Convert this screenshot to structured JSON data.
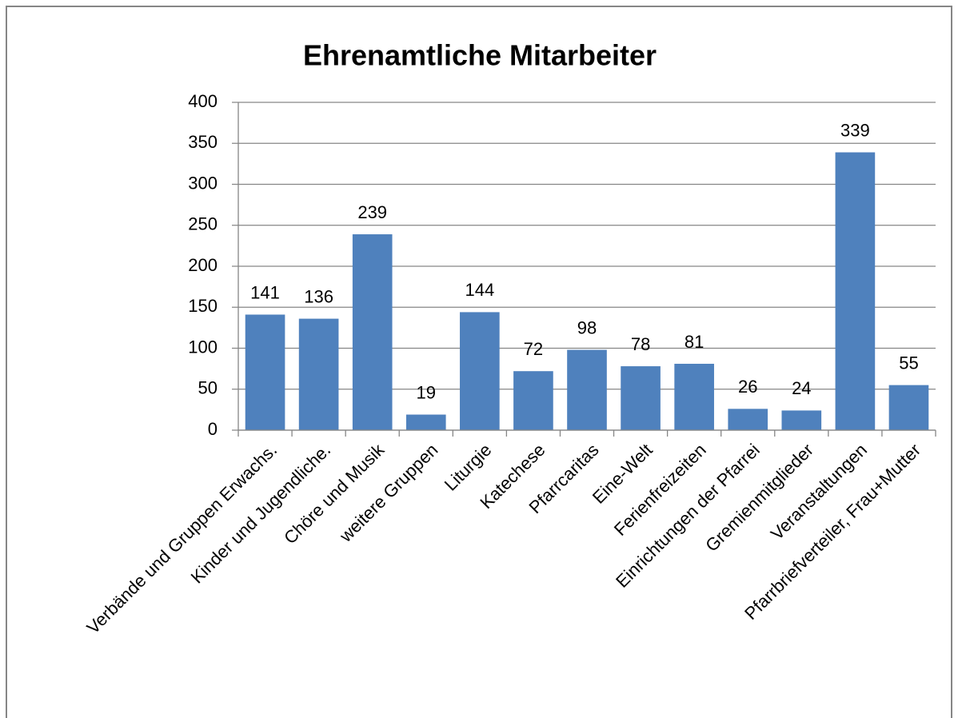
{
  "chart_data": {
    "type": "bar",
    "title": "Ehrenamtliche Mitarbeiter",
    "categories": [
      "Verbände und Gruppen Erwachs.",
      "Kinder und Jugendliche.",
      "Chöre und Musik",
      "weitere Gruppen",
      "Liturgie",
      "Katechese",
      "Pfarrcaritas",
      "Eine-Welt",
      "Ferienfreizeiten",
      "Einrichtungen der Pfarrei",
      "Gremienmitglieder",
      "Veranstaltungen",
      "Pfarrbriefverteiler, Frau+Mutter"
    ],
    "values": [
      141,
      136,
      239,
      19,
      144,
      72,
      98,
      78,
      81,
      26,
      24,
      339,
      55
    ],
    "color": "#4f81bd",
    "ylim": [
      0,
      400
    ],
    "yticks": [
      0,
      50,
      100,
      150,
      200,
      250,
      300,
      350,
      400
    ],
    "grid": true
  }
}
